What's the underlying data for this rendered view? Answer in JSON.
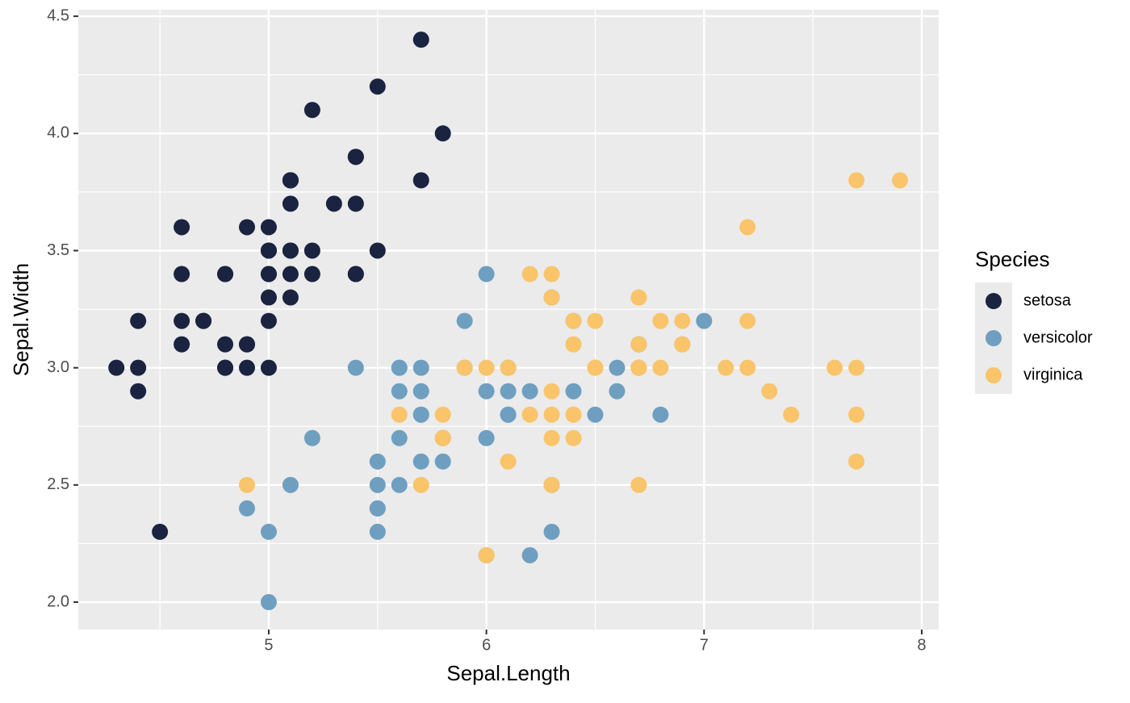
{
  "chart_data": {
    "type": "scatter",
    "x_label": "Sepal.Length",
    "y_label": "Sepal.Width",
    "legend_title": "Species",
    "xlim": [
      4.125,
      8.078
    ],
    "ylim": [
      1.883,
      4.528
    ],
    "xticks": [
      5,
      6,
      7,
      8
    ],
    "yticks": [
      {
        "value": 2,
        "label": "2.0"
      },
      2.5,
      {
        "value": 3,
        "label": "3.0"
      },
      3.5,
      {
        "value": 4,
        "label": "4.0"
      },
      4.5
    ],
    "grid": true,
    "legend_position": "right",
    "series": [
      {
        "name": "setosa",
        "color": "#1a2340",
        "x": [
          5.1,
          4.9,
          4.7,
          4.6,
          5.0,
          5.4,
          4.6,
          5.0,
          4.4,
          4.9,
          5.4,
          4.8,
          4.8,
          4.3,
          5.8,
          5.7,
          5.4,
          5.1,
          5.7,
          5.1,
          5.4,
          5.1,
          4.6,
          5.1,
          4.8,
          5.0,
          5.0,
          5.2,
          5.2,
          4.7,
          4.8,
          5.4,
          5.2,
          5.5,
          4.9,
          5.0,
          5.5,
          4.9,
          4.4,
          5.1,
          5.0,
          4.5,
          4.4,
          5.0,
          5.1,
          4.8,
          5.1,
          4.6,
          5.3,
          5.0
        ],
        "values": [
          3.5,
          3.0,
          3.2,
          3.1,
          3.6,
          3.9,
          3.4,
          3.4,
          2.9,
          3.1,
          3.7,
          3.4,
          3.0,
          3.0,
          4.0,
          4.4,
          3.9,
          3.5,
          3.8,
          3.8,
          3.4,
          3.7,
          3.6,
          3.3,
          3.4,
          3.0,
          3.4,
          3.5,
          3.4,
          3.2,
          3.1,
          3.4,
          4.1,
          4.2,
          3.1,
          3.2,
          3.5,
          3.6,
          3.0,
          3.4,
          3.5,
          2.3,
          3.2,
          3.5,
          3.8,
          3.0,
          3.8,
          3.2,
          3.7,
          3.3
        ]
      },
      {
        "name": "versicolor",
        "color": "#6f9fc0",
        "x": [
          7.0,
          6.4,
          6.9,
          5.5,
          6.5,
          5.7,
          6.3,
          4.9,
          6.6,
          5.2,
          5.0,
          5.9,
          6.0,
          6.1,
          5.6,
          6.7,
          5.6,
          5.8,
          6.2,
          5.6,
          5.9,
          6.1,
          6.3,
          6.1,
          6.4,
          6.6,
          6.8,
          6.7,
          6.0,
          5.7,
          5.5,
          5.5,
          5.8,
          6.0,
          5.4,
          6.0,
          6.7,
          6.3,
          5.6,
          5.5,
          5.5,
          6.1,
          5.8,
          5.0,
          5.6,
          5.7,
          5.7,
          6.2,
          5.1,
          5.7
        ],
        "values": [
          3.2,
          3.2,
          3.1,
          2.3,
          2.8,
          2.8,
          3.3,
          2.4,
          2.9,
          2.7,
          2.0,
          3.0,
          2.2,
          2.9,
          2.9,
          3.1,
          3.0,
          2.7,
          2.2,
          2.5,
          3.2,
          2.8,
          2.5,
          2.8,
          2.9,
          3.0,
          2.8,
          3.0,
          2.9,
          2.6,
          2.4,
          2.4,
          2.7,
          2.7,
          3.0,
          3.4,
          3.1,
          2.3,
          3.0,
          2.5,
          2.6,
          3.0,
          2.6,
          2.3,
          2.7,
          3.0,
          2.9,
          2.9,
          2.5,
          2.8
        ]
      },
      {
        "name": "virginica",
        "color": "#f9c46a",
        "x": [
          6.3,
          5.8,
          7.1,
          6.3,
          6.5,
          7.6,
          4.9,
          7.3,
          6.7,
          7.2,
          6.5,
          6.4,
          6.8,
          5.7,
          5.8,
          6.4,
          6.5,
          7.7,
          7.7,
          6.0,
          6.9,
          5.6,
          7.7,
          6.3,
          6.7,
          7.2,
          6.2,
          6.1,
          6.4,
          7.2,
          7.4,
          7.9,
          6.4,
          6.3,
          6.1,
          7.7,
          6.3,
          6.4,
          6.0,
          6.9,
          6.7,
          6.9,
          5.8,
          6.8,
          6.7,
          6.7,
          6.3,
          6.5,
          6.2,
          5.9
        ],
        "values": [
          3.3,
          2.7,
          3.0,
          2.9,
          3.0,
          3.0,
          2.5,
          2.9,
          2.5,
          3.6,
          3.2,
          2.7,
          3.0,
          2.5,
          2.8,
          3.2,
          3.0,
          3.8,
          2.6,
          2.2,
          3.2,
          2.8,
          2.8,
          2.7,
          3.3,
          3.2,
          2.8,
          3.0,
          2.8,
          3.0,
          2.8,
          3.8,
          2.8,
          2.8,
          2.6,
          3.0,
          3.4,
          3.1,
          3.0,
          3.1,
          3.1,
          3.1,
          2.7,
          3.2,
          3.3,
          3.0,
          2.5,
          3.0,
          3.4,
          3.0
        ]
      }
    ]
  }
}
